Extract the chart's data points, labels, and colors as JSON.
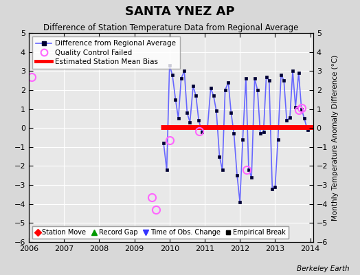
{
  "title": "SANTA YNEZ AP",
  "subtitle": "Difference of Station Temperature Data from Regional Average",
  "ylabel_right": "Monthly Temperature Anomaly Difference (°C)",
  "xlim": [
    2006.0,
    2014.083
  ],
  "ylim": [
    -6,
    5
  ],
  "yticks": [
    -6,
    -5,
    -4,
    -3,
    -2,
    -1,
    0,
    1,
    2,
    3,
    4,
    5
  ],
  "xticks": [
    2006,
    2007,
    2008,
    2009,
    2010,
    2011,
    2012,
    2013,
    2014
  ],
  "bias_line_y": 0.05,
  "bias_line_xstart": 2009.75,
  "bias_line_xend": 2014.083,
  "qc_failed_x": [
    2006.08,
    2009.5,
    2009.62,
    2010.0,
    2010.85,
    2012.2,
    2013.67,
    2013.75
  ],
  "qc_failed_y": [
    2.7,
    -3.65,
    -4.3,
    -0.65,
    -0.18,
    -2.2,
    0.95,
    1.05
  ],
  "main_line_color": "#6666ff",
  "main_marker_color": "#000033",
  "bias_line_color": "#ff0000",
  "qc_color": "#ff66ff",
  "background_color": "#d8d8d8",
  "plot_bg_color": "#e8e8e8",
  "grid_color": "#ffffff",
  "watermark": "Berkeley Earth",
  "main_x": [
    2009.83,
    2009.92,
    2010.0,
    2010.08,
    2010.17,
    2010.25,
    2010.33,
    2010.42,
    2010.5,
    2010.58,
    2010.67,
    2010.75,
    2010.83,
    2010.92,
    2011.0,
    2011.08,
    2011.17,
    2011.25,
    2011.33,
    2011.42,
    2011.5,
    2011.58,
    2011.67,
    2011.75,
    2011.83,
    2011.92,
    2012.0,
    2012.08,
    2012.17,
    2012.25,
    2012.33,
    2012.42,
    2012.5,
    2012.58,
    2012.67,
    2012.75,
    2012.83,
    2012.92,
    2013.0,
    2013.08,
    2013.17,
    2013.25,
    2013.33,
    2013.42,
    2013.5,
    2013.58,
    2013.67,
    2013.75,
    2013.83,
    2013.92
  ],
  "main_y": [
    -0.8,
    -2.2,
    3.3,
    2.8,
    1.5,
    0.5,
    2.6,
    3.0,
    0.8,
    0.3,
    2.2,
    1.7,
    0.4,
    -0.2,
    0.05,
    0.05,
    2.1,
    1.7,
    0.9,
    -1.5,
    -2.2,
    2.0,
    2.4,
    0.8,
    -0.3,
    -2.5,
    -3.9,
    -0.6,
    2.6,
    -2.2,
    -2.6,
    2.6,
    2.0,
    -0.3,
    -0.2,
    2.7,
    2.5,
    -3.2,
    -3.1,
    -0.6,
    2.8,
    2.5,
    0.4,
    0.55,
    3.0,
    1.1,
    2.9,
    1.0,
    0.5,
    -0.1
  ],
  "title_fontsize": 13,
  "subtitle_fontsize": 8.5,
  "tick_labelsize": 8,
  "legend1_fontsize": 7.5,
  "legend2_fontsize": 7
}
